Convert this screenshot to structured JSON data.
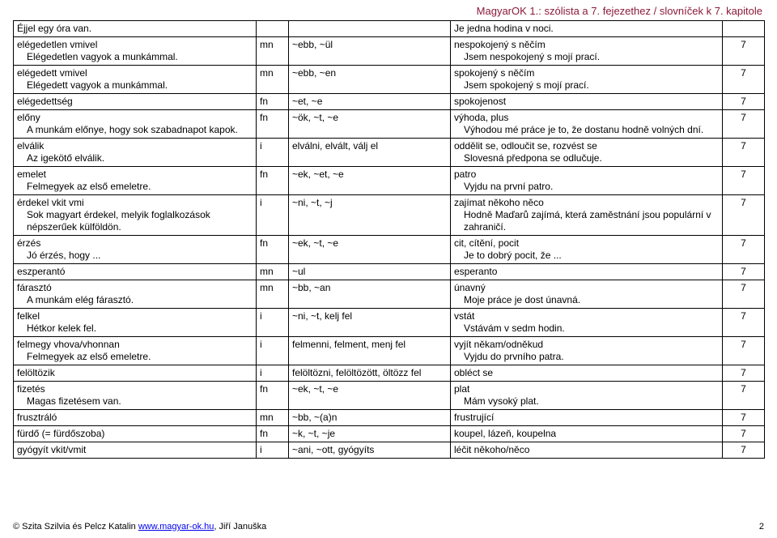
{
  "header": "MagyarOK 1.: szólista a 7. fejezethez / slovníček k 7. kapitole",
  "footer": {
    "left_prefix": "© Szita Szilvia és Pelcz Katalin ",
    "link_text": "www.magyar-ok.hu",
    "left_suffix": ", Jiří Januška",
    "page": "2"
  },
  "rows": [
    {
      "hu": "Éjjel egy óra van.",
      "hu_sub": "",
      "pos": "",
      "forms": "",
      "cz": "Je jedna hodina v noci.",
      "cz_sub": "",
      "ch": ""
    },
    {
      "hu": "elégedetlen vmivel",
      "hu_sub": "Elégedetlen vagyok a munkámmal.",
      "pos": "mn",
      "forms": "~ebb, ~ül",
      "cz": "nespokojený s něčím",
      "cz_sub": "Jsem nespokojený s mojí prací.",
      "ch": "7"
    },
    {
      "hu": "elégedett vmivel",
      "hu_sub": "Elégedett vagyok a munkámmal.",
      "pos": "mn",
      "forms": "~ebb, ~en",
      "cz": "spokojený s něčím",
      "cz_sub": "Jsem spokojený s mojí prací.",
      "ch": "7"
    },
    {
      "hu": "elégedettség",
      "hu_sub": "",
      "pos": "fn",
      "forms": "~et, ~e",
      "cz": "spokojenost",
      "cz_sub": "",
      "ch": "7"
    },
    {
      "hu": "előny",
      "hu_sub": "A munkám előnye, hogy sok szabadnapot kapok.",
      "pos": "fn",
      "forms": "~ök, ~t, ~e",
      "cz": "výhoda, plus",
      "cz_sub": "Výhodou mé práce je to, že dostanu hodně volných dní.",
      "ch": "7"
    },
    {
      "hu": "elválik",
      "hu_sub": "Az igekötő elválik.",
      "pos": "i",
      "forms": "elválni, elvált, válj el",
      "cz": "oddělit se, odloučit se, rozvést se",
      "cz_sub": "Slovesná předpona se odlučuje.",
      "ch": "7"
    },
    {
      "hu": "emelet",
      "hu_sub": "Felmegyek az első emeletre.",
      "pos": "fn",
      "forms": "~ek, ~et, ~e",
      "cz": "patro",
      "cz_sub": "Vyjdu na první patro.",
      "ch": "7"
    },
    {
      "hu": "érdekel vkit vmi",
      "hu_sub": "Sok magyart érdekel, melyik foglalkozások népszerűek külföldön.",
      "pos": "i",
      "forms": "~ni, ~t, ~j",
      "cz": "zajímat někoho něco",
      "cz_sub": "Hodně Maďarů zajímá, která zaměstnání jsou populární v zahraničí.",
      "ch": "7"
    },
    {
      "hu": "érzés",
      "hu_sub": "Jó érzés, hogy ...",
      "pos": "fn",
      "forms": "~ek, ~t, ~e",
      "cz": "cit, cítění, pocit",
      "cz_sub": "Je to dobrý pocit, že ...",
      "ch": "7"
    },
    {
      "hu": "eszperantó",
      "hu_sub": "",
      "pos": "mn",
      "forms": "~ul",
      "cz": "esperanto",
      "cz_sub": "",
      "ch": "7"
    },
    {
      "hu": "fárasztó",
      "hu_sub": "A munkám elég fárasztó.",
      "pos": "mn",
      "forms": "~bb, ~an",
      "cz": "únavný",
      "cz_sub": "Moje práce je dost únavná.",
      "ch": "7"
    },
    {
      "hu": "felkel",
      "hu_sub": "Hétkor kelek fel.",
      "pos": "i",
      "forms": "~ni, ~t, kelj fel",
      "cz": "vstát",
      "cz_sub": "Vstávám v sedm hodin.",
      "ch": "7"
    },
    {
      "hu": "felmegy vhova/vhonnan",
      "hu_sub": "Felmegyek az első emeletre.",
      "pos": "i",
      "forms": "felmenni, felment, menj fel",
      "cz": "vyjít někam/odněkud",
      "cz_sub": "Vyjdu do prvního patra.",
      "ch": "7"
    },
    {
      "hu": "felöltözik",
      "hu_sub": "",
      "pos": "i",
      "forms": "felöltözni, felöltözött, öltözz fel",
      "cz": "obléct se",
      "cz_sub": "",
      "ch": "7"
    },
    {
      "hu": "fizetés",
      "hu_sub": "Magas fizetésem van.",
      "pos": "fn",
      "forms": "~ek, ~t, ~e",
      "cz": "plat",
      "cz_sub": "Mám vysoký plat.",
      "ch": "7"
    },
    {
      "hu": "frusztráló",
      "hu_sub": "",
      "pos": "mn",
      "forms": "~bb, ~(a)n",
      "cz": "frustrující",
      "cz_sub": "",
      "ch": "7"
    },
    {
      "hu": "fürdő (= fürdőszoba)",
      "hu_sub": "",
      "pos": "fn",
      "forms": "~k, ~t, ~je",
      "cz": "koupel, lázeň, koupelna",
      "cz_sub": "",
      "ch": "7"
    },
    {
      "hu": "gyógyít vkit/vmit",
      "hu_sub": "",
      "pos": "i",
      "forms": "~ani, ~ott, gyógyíts",
      "cz": "léčit někoho/něco",
      "cz_sub": "",
      "ch": "7"
    }
  ]
}
